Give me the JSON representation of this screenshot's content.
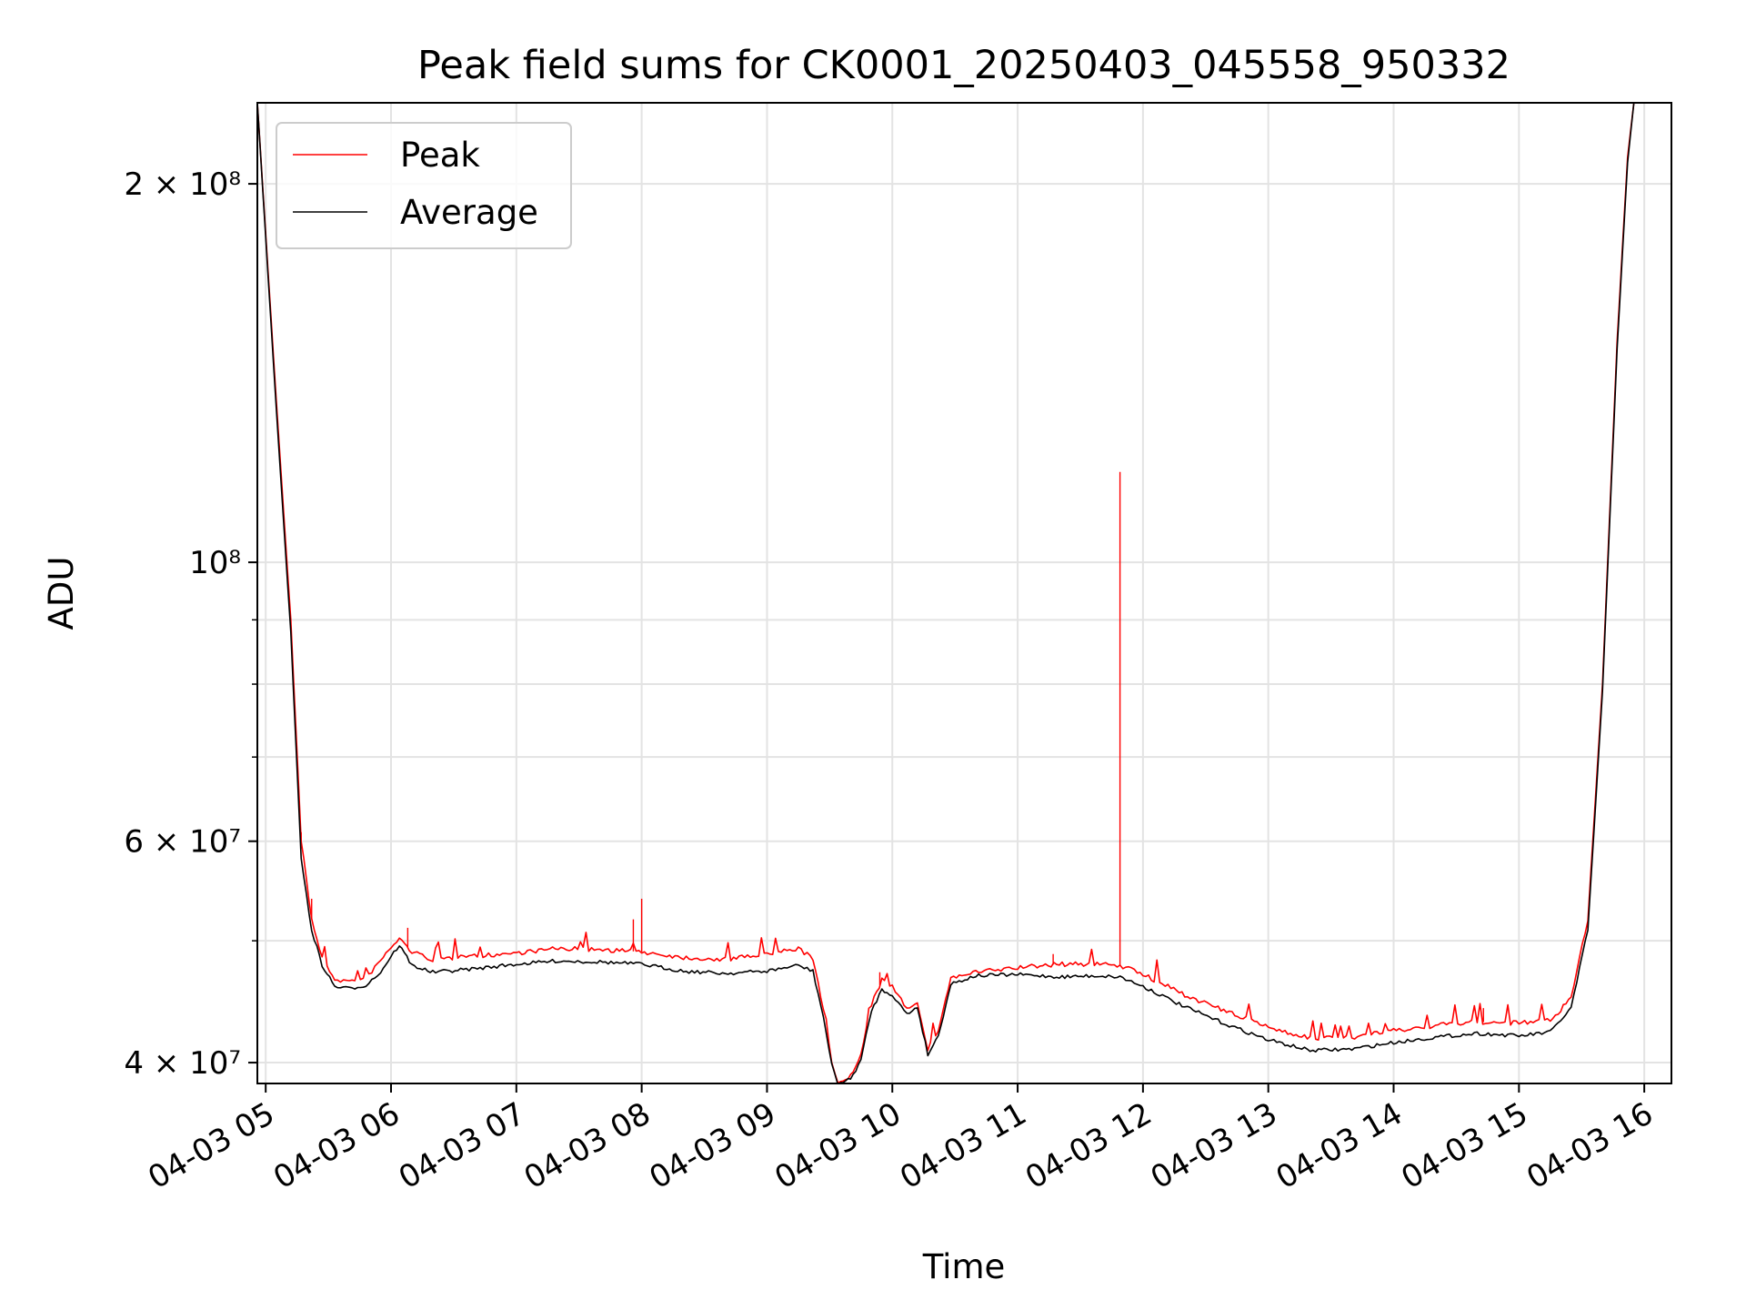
{
  "chart_data": {
    "type": "line",
    "title": "Peak field sums for CK0001_20250403_045558_950332",
    "xlabel": "Time",
    "ylabel": "ADU",
    "x_scale": "time",
    "y_scale": "log",
    "xlim": [
      "2025-04-03 04:56",
      "2025-04-03 16:13"
    ],
    "ylim": [
      38500000,
      232000000
    ],
    "x_ticks": [
      {
        "value": "2025-04-03 05:00",
        "label": "04-03 05"
      },
      {
        "value": "2025-04-03 06:00",
        "label": "04-03 06"
      },
      {
        "value": "2025-04-03 07:00",
        "label": "04-03 07"
      },
      {
        "value": "2025-04-03 08:00",
        "label": "04-03 08"
      },
      {
        "value": "2025-04-03 09:00",
        "label": "04-03 09"
      },
      {
        "value": "2025-04-03 10:00",
        "label": "04-03 10"
      },
      {
        "value": "2025-04-03 11:00",
        "label": "04-03 11"
      },
      {
        "value": "2025-04-03 12:00",
        "label": "04-03 12"
      },
      {
        "value": "2025-04-03 13:00",
        "label": "04-03 13"
      },
      {
        "value": "2025-04-03 14:00",
        "label": "04-03 14"
      },
      {
        "value": "2025-04-03 15:00",
        "label": "04-03 15"
      },
      {
        "value": "2025-04-03 16:00",
        "label": "04-03 16"
      }
    ],
    "y_major_ticks": [
      {
        "value": 40000000,
        "label": "4 × 10⁷"
      },
      {
        "value": 60000000,
        "label": "6 × 10⁷"
      },
      {
        "value": 100000000,
        "label": "10⁸"
      },
      {
        "value": 200000000,
        "label": "2 × 10⁸"
      }
    ],
    "y_minor_ticks": [
      50000000,
      70000000,
      80000000,
      90000000
    ],
    "grid": true,
    "legend_position": "top-left",
    "series": [
      {
        "name": "Peak",
        "color": "#ff0000",
        "points": [
          [
            "2025-04-03 04:56",
            232000000
          ],
          [
            "2025-04-03 05:05",
            135000000
          ],
          [
            "2025-04-03 05:12",
            90000000
          ],
          [
            "2025-04-03 05:17",
            60000000
          ],
          [
            "2025-04-03 05:22",
            52000000
          ],
          [
            "2025-04-03 05:27",
            48500000
          ],
          [
            "2025-04-03 05:33",
            46600000
          ],
          [
            "2025-04-03 05:40",
            46400000
          ],
          [
            "2025-04-03 05:48",
            46700000
          ],
          [
            "2025-04-03 05:55",
            48200000
          ],
          [
            "2025-04-03 06:00",
            49400000
          ],
          [
            "2025-04-03 06:04",
            50200000
          ],
          [
            "2025-04-03 06:10",
            49000000
          ],
          [
            "2025-04-03 06:20",
            48300000
          ],
          [
            "2025-04-03 06:40",
            48600000
          ],
          [
            "2025-04-03 07:00",
            48900000
          ],
          [
            "2025-04-03 07:20",
            49300000
          ],
          [
            "2025-04-03 07:40",
            49200000
          ],
          [
            "2025-04-03 08:00",
            49000000
          ],
          [
            "2025-04-03 08:20",
            48500000
          ],
          [
            "2025-04-03 08:40",
            48300000
          ],
          [
            "2025-04-03 09:00",
            48800000
          ],
          [
            "2025-04-03 09:15",
            49300000
          ],
          [
            "2025-04-03 09:22",
            48400000
          ],
          [
            "2025-04-03 09:27",
            44000000
          ],
          [
            "2025-04-03 09:31",
            40000000
          ],
          [
            "2025-04-03 09:34",
            38600000
          ],
          [
            "2025-04-03 09:40",
            39000000
          ],
          [
            "2025-04-03 09:45",
            40500000
          ],
          [
            "2025-04-03 09:50",
            44500000
          ],
          [
            "2025-04-03 09:55",
            46500000
          ],
          [
            "2025-04-03 10:00",
            46000000
          ],
          [
            "2025-04-03 10:07",
            44200000
          ],
          [
            "2025-04-03 10:12",
            44700000
          ],
          [
            "2025-04-03 10:17",
            41000000
          ],
          [
            "2025-04-03 10:22",
            42500000
          ],
          [
            "2025-04-03 10:28",
            46700000
          ],
          [
            "2025-04-03 10:40",
            47200000
          ],
          [
            "2025-04-03 11:00",
            47600000
          ],
          [
            "2025-04-03 11:20",
            47900000
          ],
          [
            "2025-04-03 11:38",
            47900000
          ],
          [
            "2025-04-03 11:49",
            47800000
          ],
          [
            "2025-04-03 12:00",
            47000000
          ],
          [
            "2025-04-03 12:20",
            45300000
          ],
          [
            "2025-04-03 12:40",
            43900000
          ],
          [
            "2025-04-03 13:00",
            42700000
          ],
          [
            "2025-04-03 13:20",
            41800000
          ],
          [
            "2025-04-03 13:40",
            41900000
          ],
          [
            "2025-04-03 14:00",
            42400000
          ],
          [
            "2025-04-03 14:20",
            42800000
          ],
          [
            "2025-04-03 14:40",
            43100000
          ],
          [
            "2025-04-03 15:00",
            43000000
          ],
          [
            "2025-04-03 15:15",
            43200000
          ],
          [
            "2025-04-03 15:25",
            45000000
          ],
          [
            "2025-04-03 15:33",
            52000000
          ],
          [
            "2025-04-03 15:40",
            80000000
          ],
          [
            "2025-04-03 15:47",
            150000000
          ],
          [
            "2025-04-03 15:52",
            210000000
          ],
          [
            "2025-04-03 15:55",
            232000000
          ]
        ],
        "spikes": [
          [
            "2025-04-03 11:49",
            118000000
          ],
          [
            "2025-04-03 08:00",
            54000000
          ],
          [
            "2025-04-03 07:56",
            52000000
          ],
          [
            "2025-04-03 06:08",
            51200000
          ],
          [
            "2025-04-03 05:22",
            54000000
          ],
          [
            "2025-04-03 05:17",
            61000000
          ],
          [
            "2025-04-03 09:54",
            47200000
          ],
          [
            "2025-04-03 11:17",
            48800000
          ],
          [
            "2025-04-03 14:43",
            44200000
          ]
        ]
      },
      {
        "name": "Average",
        "color": "#000000",
        "points": [
          [
            "2025-04-03 04:56",
            232000000
          ],
          [
            "2025-04-03 05:05",
            133000000
          ],
          [
            "2025-04-03 05:12",
            88000000
          ],
          [
            "2025-04-03 05:17",
            58000000
          ],
          [
            "2025-04-03 05:22",
            51000000
          ],
          [
            "2025-04-03 05:27",
            47800000
          ],
          [
            "2025-04-03 05:33",
            46000000
          ],
          [
            "2025-04-03 05:40",
            45800000
          ],
          [
            "2025-04-03 05:48",
            46100000
          ],
          [
            "2025-04-03 05:55",
            47200000
          ],
          [
            "2025-04-03 06:00",
            48600000
          ],
          [
            "2025-04-03 06:04",
            49600000
          ],
          [
            "2025-04-03 06:10",
            47800000
          ],
          [
            "2025-04-03 06:20",
            47200000
          ],
          [
            "2025-04-03 06:40",
            47500000
          ],
          [
            "2025-04-03 07:00",
            47900000
          ],
          [
            "2025-04-03 07:20",
            48200000
          ],
          [
            "2025-04-03 07:40",
            48100000
          ],
          [
            "2025-04-03 08:00",
            47900000
          ],
          [
            "2025-04-03 08:20",
            47300000
          ],
          [
            "2025-04-03 08:40",
            47100000
          ],
          [
            "2025-04-03 09:00",
            47300000
          ],
          [
            "2025-04-03 09:15",
            47800000
          ],
          [
            "2025-04-03 09:22",
            47300000
          ],
          [
            "2025-04-03 09:27",
            43500000
          ],
          [
            "2025-04-03 09:31",
            39800000
          ],
          [
            "2025-04-03 09:34",
            38500000
          ],
          [
            "2025-04-03 09:40",
            38800000
          ],
          [
            "2025-04-03 09:45",
            40200000
          ],
          [
            "2025-04-03 09:50",
            44000000
          ],
          [
            "2025-04-03 09:55",
            45700000
          ],
          [
            "2025-04-03 10:00",
            45300000
          ],
          [
            "2025-04-03 10:07",
            43700000
          ],
          [
            "2025-04-03 10:12",
            44300000
          ],
          [
            "2025-04-03 10:17",
            40600000
          ],
          [
            "2025-04-03 10:22",
            42000000
          ],
          [
            "2025-04-03 10:28",
            46200000
          ],
          [
            "2025-04-03 10:40",
            46900000
          ],
          [
            "2025-04-03 11:00",
            47000000
          ],
          [
            "2025-04-03 11:20",
            46800000
          ],
          [
            "2025-04-03 11:38",
            46900000
          ],
          [
            "2025-04-03 11:49",
            46800000
          ],
          [
            "2025-04-03 12:00",
            46000000
          ],
          [
            "2025-04-03 12:20",
            44300000
          ],
          [
            "2025-04-03 12:40",
            42900000
          ],
          [
            "2025-04-03 13:00",
            41700000
          ],
          [
            "2025-04-03 13:20",
            40900000
          ],
          [
            "2025-04-03 13:40",
            41000000
          ],
          [
            "2025-04-03 14:00",
            41500000
          ],
          [
            "2025-04-03 14:20",
            41900000
          ],
          [
            "2025-04-03 14:40",
            42200000
          ],
          [
            "2025-04-03 15:00",
            42000000
          ],
          [
            "2025-04-03 15:15",
            42300000
          ],
          [
            "2025-04-03 15:25",
            44200000
          ],
          [
            "2025-04-03 15:33",
            51000000
          ],
          [
            "2025-04-03 15:40",
            79000000
          ],
          [
            "2025-04-03 15:47",
            148000000
          ],
          [
            "2025-04-03 15:52",
            208000000
          ],
          [
            "2025-04-03 15:55",
            232000000
          ]
        ]
      }
    ]
  }
}
